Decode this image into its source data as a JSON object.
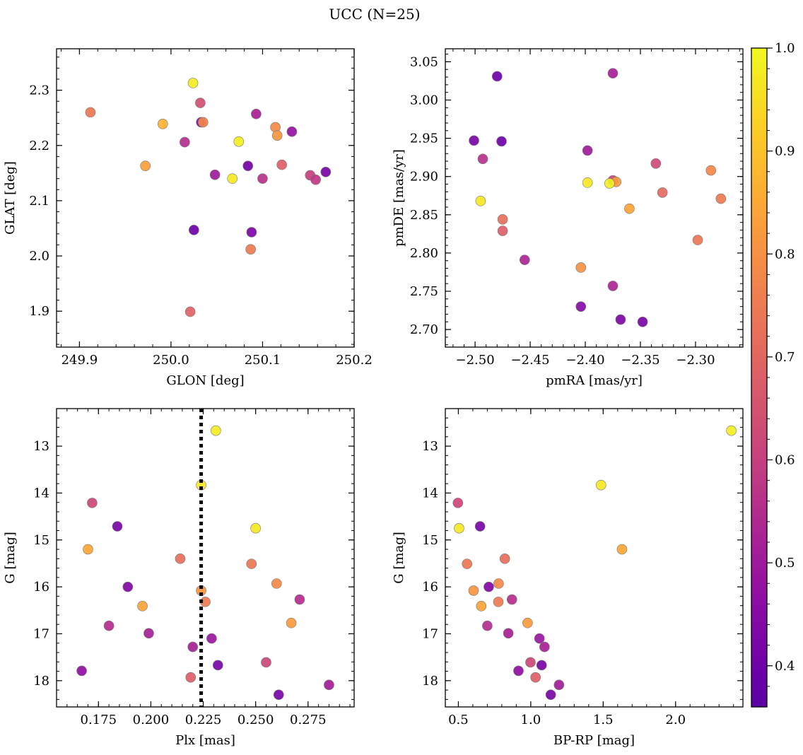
{
  "title": "UCC (N=25)",
  "colorbar": {
    "min": 0.36,
    "max": 1.0,
    "ticks": [
      0.4,
      0.5,
      0.6,
      0.7,
      0.8,
      0.9,
      1.0
    ],
    "tick_labels": [
      "0.4",
      "0.5",
      "0.6",
      "0.7",
      "0.8",
      "0.9",
      "1.0"
    ],
    "colormap": "plasma"
  },
  "chart_data": [
    {
      "type": "scatter",
      "id": "glon-glat",
      "xlabel": "GLON [deg]",
      "ylabel": "GLAT [deg]",
      "xlim": [
        249.875,
        250.2
      ],
      "ylim": [
        1.835,
        2.375
      ],
      "y_inverted": false,
      "xticks": [
        249.9,
        250.0,
        250.1,
        250.2
      ],
      "xtick_labels": [
        "249.9",
        "250.0",
        "250.1",
        "250.2"
      ],
      "yticks": [
        1.9,
        2.0,
        2.1,
        2.2,
        2.3
      ],
      "ytick_labels": [
        "1.9",
        "2.0",
        "2.1",
        "2.2",
        "2.3"
      ],
      "points": [
        {
          "x": 249.912,
          "y": 2.26,
          "c": 0.74
        },
        {
          "x": 249.972,
          "y": 2.163,
          "c": 0.83
        },
        {
          "x": 249.991,
          "y": 2.239,
          "c": 0.87
        },
        {
          "x": 250.015,
          "y": 2.206,
          "c": 0.55
        },
        {
          "x": 250.024,
          "y": 2.313,
          "c": 0.98
        },
        {
          "x": 250.032,
          "y": 2.277,
          "c": 0.64
        },
        {
          "x": 250.033,
          "y": 2.242,
          "c": 0.44
        },
        {
          "x": 250.035,
          "y": 2.242,
          "c": 0.78
        },
        {
          "x": 250.025,
          "y": 2.047,
          "c": 0.4
        },
        {
          "x": 250.021,
          "y": 1.899,
          "c": 0.69
        },
        {
          "x": 250.048,
          "y": 2.147,
          "c": 0.5
        },
        {
          "x": 250.067,
          "y": 2.14,
          "c": 0.97
        },
        {
          "x": 250.074,
          "y": 2.207,
          "c": 0.98
        },
        {
          "x": 250.084,
          "y": 2.163,
          "c": 0.41
        },
        {
          "x": 250.088,
          "y": 2.043,
          "c": 0.43
        },
        {
          "x": 250.087,
          "y": 2.012,
          "c": 0.75
        },
        {
          "x": 250.093,
          "y": 2.257,
          "c": 0.52
        },
        {
          "x": 250.1,
          "y": 2.14,
          "c": 0.56
        },
        {
          "x": 250.114,
          "y": 2.233,
          "c": 0.79
        },
        {
          "x": 250.116,
          "y": 2.218,
          "c": 0.81
        },
        {
          "x": 250.121,
          "y": 2.165,
          "c": 0.68
        },
        {
          "x": 250.132,
          "y": 2.225,
          "c": 0.48
        },
        {
          "x": 250.152,
          "y": 2.146,
          "c": 0.6
        },
        {
          "x": 250.158,
          "y": 2.138,
          "c": 0.58
        },
        {
          "x": 250.169,
          "y": 2.152,
          "c": 0.42
        }
      ]
    },
    {
      "type": "scatter",
      "id": "pmra-pmde",
      "xlabel": "pmRA [mas/yr]",
      "ylabel": "pmDE [mas/yr]",
      "xlim": [
        -2.527,
        -2.257
      ],
      "ylim": [
        2.677,
        3.067
      ],
      "y_inverted": false,
      "xticks": [
        -2.5,
        -2.45,
        -2.4,
        -2.35,
        -2.3
      ],
      "xtick_labels": [
        "−2.50",
        "−2.45",
        "−2.40",
        "−2.35",
        "−2.30"
      ],
      "yticks": [
        2.7,
        2.75,
        2.8,
        2.85,
        2.9,
        2.95,
        3.0,
        3.05
      ],
      "ytick_labels": [
        "2.70",
        "2.75",
        "2.80",
        "2.85",
        "2.90",
        "2.95",
        "3.00",
        "3.05"
      ],
      "points": [
        {
          "x": -2.48,
          "y": 3.031,
          "c": 0.4
        },
        {
          "x": -2.375,
          "y": 3.035,
          "c": 0.52
        },
        {
          "x": -2.501,
          "y": 2.947,
          "c": 0.42
        },
        {
          "x": -2.476,
          "y": 2.946,
          "c": 0.4
        },
        {
          "x": -2.398,
          "y": 2.934,
          "c": 0.5
        },
        {
          "x": -2.493,
          "y": 2.923,
          "c": 0.56
        },
        {
          "x": -2.336,
          "y": 2.917,
          "c": 0.63
        },
        {
          "x": -2.286,
          "y": 2.908,
          "c": 0.78
        },
        {
          "x": -2.375,
          "y": 2.895,
          "c": 0.62
        },
        {
          "x": -2.372,
          "y": 2.893,
          "c": 0.82
        },
        {
          "x": -2.378,
          "y": 2.891,
          "c": 0.98
        },
        {
          "x": -2.398,
          "y": 2.892,
          "c": 0.97
        },
        {
          "x": -2.33,
          "y": 2.879,
          "c": 0.71
        },
        {
          "x": -2.277,
          "y": 2.871,
          "c": 0.75
        },
        {
          "x": -2.495,
          "y": 2.868,
          "c": 0.97
        },
        {
          "x": -2.36,
          "y": 2.858,
          "c": 0.84
        },
        {
          "x": -2.475,
          "y": 2.844,
          "c": 0.72
        },
        {
          "x": -2.475,
          "y": 2.829,
          "c": 0.68
        },
        {
          "x": -2.298,
          "y": 2.817,
          "c": 0.74
        },
        {
          "x": -2.455,
          "y": 2.791,
          "c": 0.53
        },
        {
          "x": -2.404,
          "y": 2.781,
          "c": 0.8
        },
        {
          "x": -2.375,
          "y": 2.757,
          "c": 0.53
        },
        {
          "x": -2.404,
          "y": 2.73,
          "c": 0.45
        },
        {
          "x": -2.368,
          "y": 2.713,
          "c": 0.43
        },
        {
          "x": -2.348,
          "y": 2.71,
          "c": 0.42
        }
      ]
    },
    {
      "type": "scatter",
      "id": "plx-g",
      "xlabel": "Plx [mas]",
      "ylabel": "G [mag]",
      "xlim": [
        0.155,
        0.297
      ],
      "ylim": [
        18.56,
        12.2
      ],
      "y_inverted": true,
      "xticks": [
        0.175,
        0.2,
        0.225,
        0.25,
        0.275
      ],
      "xtick_labels": [
        "0.175",
        "0.200",
        "0.225",
        "0.250",
        "0.275"
      ],
      "yticks": [
        13,
        14,
        15,
        16,
        17,
        18
      ],
      "ytick_labels": [
        "13",
        "14",
        "15",
        "16",
        "17",
        "18"
      ],
      "vline": {
        "x": 0.224,
        "style": "dotted"
      },
      "points": [
        {
          "x": 0.231,
          "y": 12.67,
          "c": 0.98
        },
        {
          "x": 0.224,
          "y": 13.83,
          "c": 0.97
        },
        {
          "x": 0.172,
          "y": 14.21,
          "c": 0.62
        },
        {
          "x": 0.184,
          "y": 14.71,
          "c": 0.42
        },
        {
          "x": 0.25,
          "y": 14.75,
          "c": 0.97
        },
        {
          "x": 0.17,
          "y": 15.2,
          "c": 0.85
        },
        {
          "x": 0.214,
          "y": 15.4,
          "c": 0.72
        },
        {
          "x": 0.248,
          "y": 15.51,
          "c": 0.74
        },
        {
          "x": 0.26,
          "y": 15.93,
          "c": 0.78
        },
        {
          "x": 0.189,
          "y": 16.0,
          "c": 0.44
        },
        {
          "x": 0.224,
          "y": 16.08,
          "c": 0.81
        },
        {
          "x": 0.226,
          "y": 16.32,
          "c": 0.75
        },
        {
          "x": 0.271,
          "y": 16.27,
          "c": 0.55
        },
        {
          "x": 0.196,
          "y": 16.41,
          "c": 0.84
        },
        {
          "x": 0.267,
          "y": 16.77,
          "c": 0.82
        },
        {
          "x": 0.18,
          "y": 16.83,
          "c": 0.55
        },
        {
          "x": 0.199,
          "y": 16.99,
          "c": 0.52
        },
        {
          "x": 0.229,
          "y": 17.1,
          "c": 0.49
        },
        {
          "x": 0.22,
          "y": 17.28,
          "c": 0.52
        },
        {
          "x": 0.255,
          "y": 17.61,
          "c": 0.62
        },
        {
          "x": 0.232,
          "y": 17.67,
          "c": 0.42
        },
        {
          "x": 0.167,
          "y": 17.79,
          "c": 0.47
        },
        {
          "x": 0.219,
          "y": 17.93,
          "c": 0.68
        },
        {
          "x": 0.285,
          "y": 18.09,
          "c": 0.51
        },
        {
          "x": 0.261,
          "y": 18.3,
          "c": 0.42
        }
      ]
    },
    {
      "type": "scatter",
      "id": "bprp-g",
      "xlabel": "BP-RP [mag]",
      "ylabel": "G [mag]",
      "xlim": [
        0.41,
        2.465
      ],
      "ylim": [
        18.56,
        12.2
      ],
      "y_inverted": true,
      "xticks": [
        0.5,
        1.0,
        1.5,
        2.0
      ],
      "xtick_labels": [
        "0.5",
        "1.0",
        "1.5",
        "2.0"
      ],
      "yticks": [
        13,
        14,
        15,
        16,
        17,
        18
      ],
      "ytick_labels": [
        "13",
        "14",
        "15",
        "16",
        "17",
        "18"
      ],
      "points": [
        {
          "x": 2.385,
          "y": 12.67,
          "c": 0.98
        },
        {
          "x": 1.485,
          "y": 13.83,
          "c": 0.97
        },
        {
          "x": 0.497,
          "y": 14.21,
          "c": 0.62
        },
        {
          "x": 0.65,
          "y": 14.71,
          "c": 0.42
        },
        {
          "x": 0.505,
          "y": 14.75,
          "c": 0.97
        },
        {
          "x": 1.63,
          "y": 15.2,
          "c": 0.85
        },
        {
          "x": 0.821,
          "y": 15.4,
          "c": 0.72
        },
        {
          "x": 0.56,
          "y": 15.51,
          "c": 0.74
        },
        {
          "x": 0.778,
          "y": 15.93,
          "c": 0.78
        },
        {
          "x": 0.71,
          "y": 16.0,
          "c": 0.44
        },
        {
          "x": 0.605,
          "y": 16.08,
          "c": 0.81
        },
        {
          "x": 0.776,
          "y": 16.32,
          "c": 0.75
        },
        {
          "x": 0.87,
          "y": 16.27,
          "c": 0.55
        },
        {
          "x": 0.658,
          "y": 16.41,
          "c": 0.84
        },
        {
          "x": 0.978,
          "y": 16.77,
          "c": 0.82
        },
        {
          "x": 0.7,
          "y": 16.83,
          "c": 0.55
        },
        {
          "x": 0.845,
          "y": 16.99,
          "c": 0.52
        },
        {
          "x": 1.06,
          "y": 17.1,
          "c": 0.49
        },
        {
          "x": 1.095,
          "y": 17.28,
          "c": 0.52
        },
        {
          "x": 0.998,
          "y": 17.61,
          "c": 0.62
        },
        {
          "x": 1.075,
          "y": 17.67,
          "c": 0.42
        },
        {
          "x": 0.915,
          "y": 17.79,
          "c": 0.47
        },
        {
          "x": 1.033,
          "y": 17.93,
          "c": 0.68
        },
        {
          "x": 1.195,
          "y": 18.09,
          "c": 0.51
        },
        {
          "x": 1.138,
          "y": 18.3,
          "c": 0.42
        }
      ]
    }
  ]
}
